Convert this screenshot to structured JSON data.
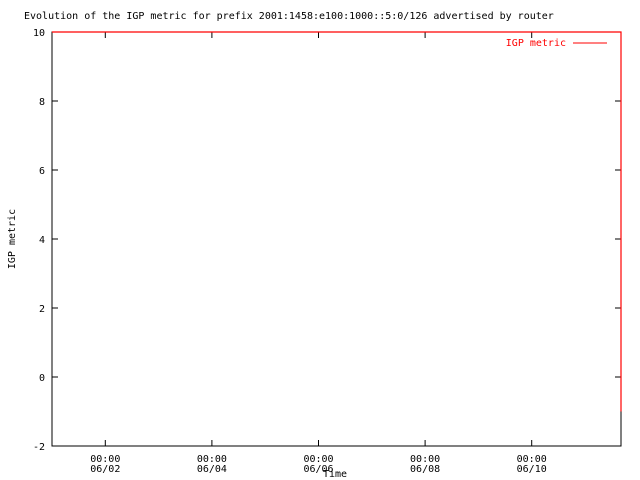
{
  "chart_data": {
    "type": "line",
    "title": "Evolution of the IGP metric for prefix 2001:1458:e100:1000::5:0/126 advertised by router",
    "xlabel": "Time",
    "ylabel": "IGP metric",
    "ylim": [
      -2,
      10
    ],
    "yticks": [
      -2,
      0,
      2,
      4,
      6,
      8,
      10
    ],
    "xlim_days": [
      "06/01 00:00",
      "06/11 17:40"
    ],
    "xticks": [
      {
        "day": 1,
        "time": "00:00",
        "date": "06/02"
      },
      {
        "day": 3,
        "time": "00:00",
        "date": "06/04"
      },
      {
        "day": 5,
        "time": "00:00",
        "date": "06/06"
      },
      {
        "day": 7,
        "time": "00:00",
        "date": "06/08"
      },
      {
        "day": 9,
        "time": "00:00",
        "date": "06/10"
      }
    ],
    "legend_position": "top-right",
    "grid": false,
    "series": [
      {
        "name": "IGP metric",
        "color": "#ff0000",
        "points": [
          {
            "x": "06/01 00:00",
            "y": 10
          },
          {
            "x": "06/11 17:40",
            "y": 10
          },
          {
            "x": "06/11 17:40",
            "y": -1
          }
        ]
      }
    ]
  }
}
